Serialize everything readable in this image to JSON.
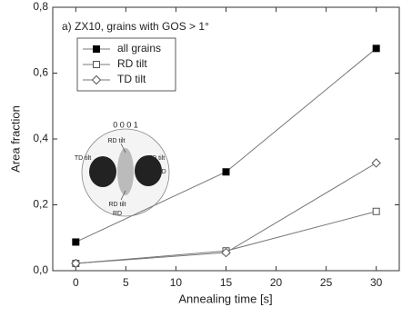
{
  "chart_data": {
    "type": "line",
    "title": "a) ZX10, grains with GOS > 1°",
    "x_label": "Annealing time [s]",
    "y_label": "Area fraction",
    "x": [
      0,
      15,
      30
    ],
    "series": [
      {
        "name": "all grains",
        "color": "#000000",
        "marker": "square-filled",
        "values": [
          0.087,
          0.3,
          0.675
        ]
      },
      {
        "name": "RD tilt",
        "color": "#555555",
        "marker": "square-open",
        "values": [
          0.022,
          0.06,
          0.18
        ]
      },
      {
        "name": "TD tilt",
        "color": "#555555",
        "marker": "diamond-open",
        "values": [
          0.022,
          0.055,
          0.327
        ]
      }
    ],
    "xlim": [
      -2.3,
      32.3
    ],
    "xticks": [
      0,
      5,
      10,
      15,
      20,
      25,
      30
    ],
    "ylim": [
      0,
      0.8
    ],
    "yticks": [
      {
        "value": 0,
        "label": "0,0"
      },
      {
        "value": 0.2,
        "label": "0,2"
      },
      {
        "value": 0.4,
        "label": "0,4"
      },
      {
        "value": 0.6,
        "label": "0,6"
      },
      {
        "value": 0.8,
        "label": "0,8"
      }
    ],
    "legend": "upper-left",
    "inset": {
      "title": "0 0 0 1",
      "labels": [
        "RD tilt",
        "TD tilt",
        "TD tilt",
        "TD",
        "RD tilt",
        "RD"
      ]
    }
  }
}
